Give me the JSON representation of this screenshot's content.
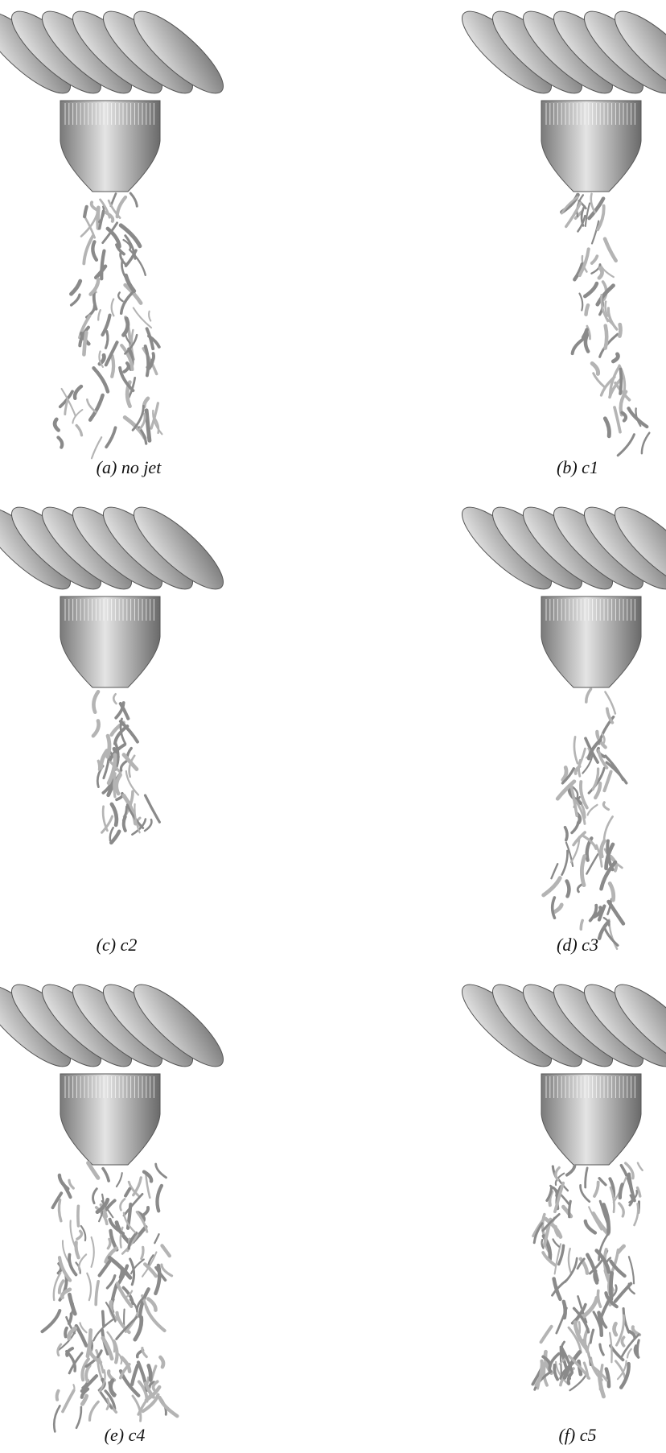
{
  "figure": {
    "panels": [
      {
        "caption": "(a) no jet"
      },
      {
        "caption": "(b) c1"
      },
      {
        "caption": "(c) c2"
      },
      {
        "caption": "(d) c3"
      },
      {
        "caption": "(e) c4"
      },
      {
        "caption": "(f) c5"
      }
    ]
  }
}
